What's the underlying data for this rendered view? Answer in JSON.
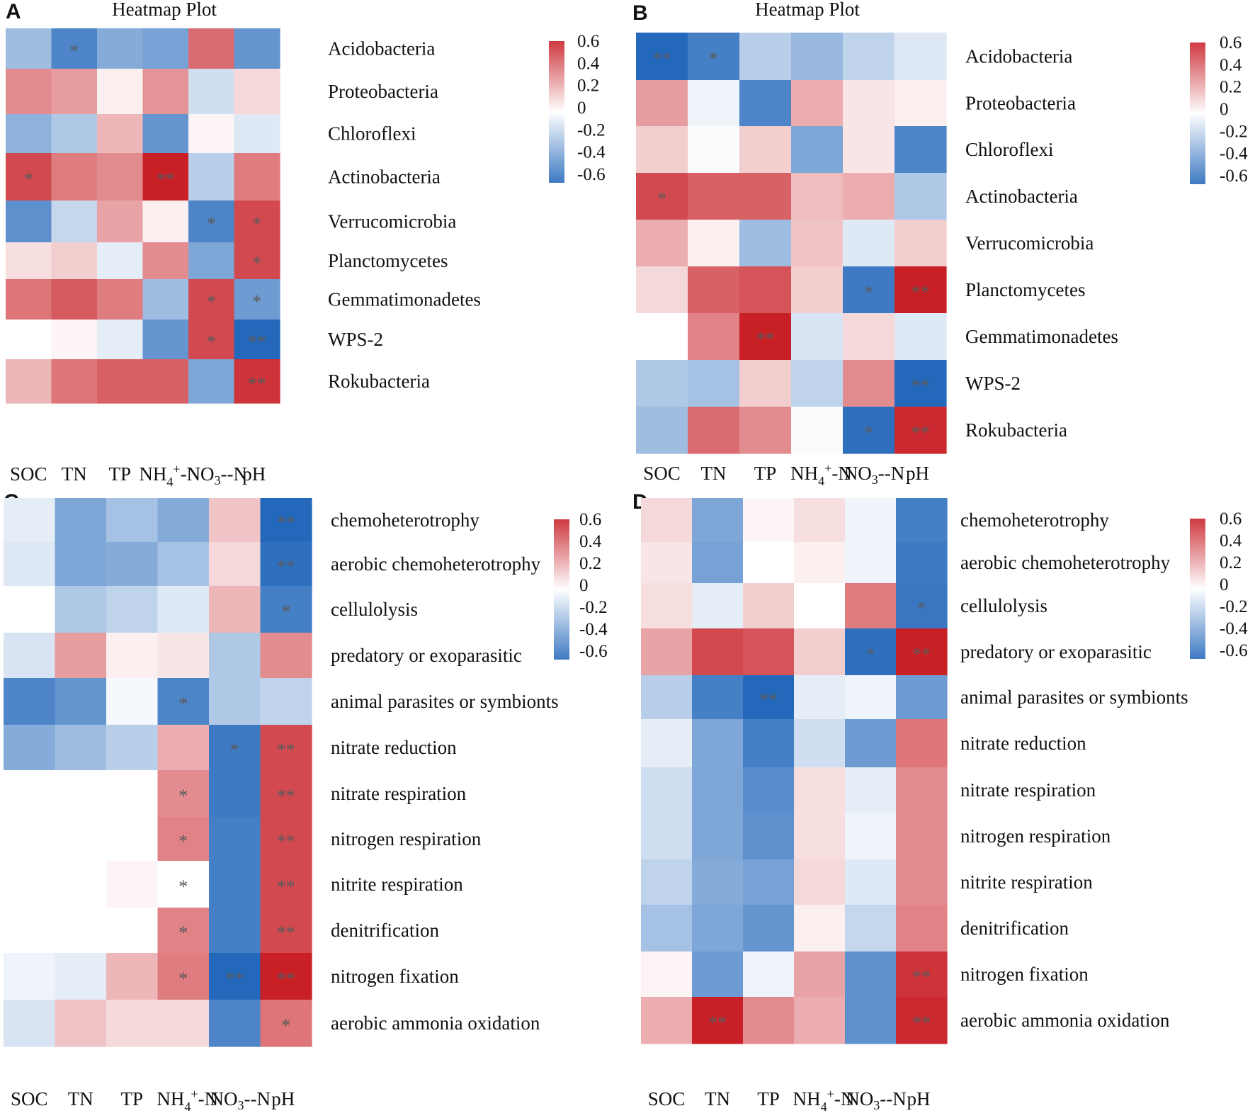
{
  "chart_data": [
    {
      "type": "heatmap",
      "panel": "A",
      "title": "Heatmap Plot",
      "columns": [
        "SOC",
        "TN",
        "TP",
        "NH4+-N",
        "NO3--N",
        "pH"
      ],
      "rows": [
        "Acidobacteria",
        "Proteobacteria",
        "Chloroflexi",
        "Actinobacteria",
        "Verrucomicrobia",
        "Planctomycetes",
        "Gemmatimonadetes",
        "WPS-2",
        "Rokubacteria"
      ],
      "values": [
        [
          -0.3,
          -0.55,
          -0.38,
          -0.42,
          0.45,
          -0.48
        ],
        [
          0.35,
          0.3,
          0.05,
          0.33,
          -0.15,
          0.12
        ],
        [
          -0.35,
          -0.25,
          0.22,
          -0.48,
          0.03,
          -0.1
        ],
        [
          0.55,
          0.4,
          0.35,
          0.68,
          -0.22,
          0.4
        ],
        [
          -0.5,
          -0.18,
          0.28,
          0.05,
          -0.55,
          0.55
        ],
        [
          0.1,
          0.15,
          -0.08,
          0.35,
          -0.4,
          0.55
        ],
        [
          0.42,
          0.5,
          0.4,
          -0.3,
          0.55,
          -0.45
        ],
        [
          0.0,
          0.03,
          -0.08,
          -0.48,
          0.55,
          -0.68
        ],
        [
          0.22,
          0.42,
          0.48,
          0.48,
          -0.4,
          0.62
        ]
      ],
      "sig": [
        [
          "",
          "*",
          "",
          "",
          "",
          ""
        ],
        [
          "",
          "",
          "",
          "",
          "",
          ""
        ],
        [
          "",
          "",
          "",
          "",
          "",
          ""
        ],
        [
          "*",
          "",
          "",
          "**",
          "",
          ""
        ],
        [
          "",
          "",
          "",
          "",
          "*",
          "*"
        ],
        [
          "",
          "",
          "",
          "",
          "",
          "*"
        ],
        [
          "",
          "",
          "",
          "",
          "*",
          "*"
        ],
        [
          "",
          "",
          "",
          "",
          "*",
          "**"
        ],
        [
          "",
          "",
          "",
          "",
          "",
          "**"
        ]
      ],
      "colorbar": {
        "ticks": [
          "0.6",
          "0.4",
          "0.2",
          "0",
          "-0.2",
          "-0.4",
          "-0.6"
        ],
        "range": [
          -0.6,
          0.6
        ]
      }
    },
    {
      "type": "heatmap",
      "panel": "B",
      "title": "Heatmap Plot",
      "columns": [
        "SOC",
        "TN",
        "TP",
        "NH4+-N",
        "NO3--N",
        "pH"
      ],
      "rows": [
        "Acidobacteria",
        "Proteobacteria",
        "Chloroflexi",
        "Actinobacteria",
        "Verrucomicrobia",
        "Planctomycetes",
        "Gemmatimonadetes",
        "WPS-2",
        "Rokubacteria"
      ],
      "values": [
        [
          -0.68,
          -0.58,
          -0.22,
          -0.32,
          -0.2,
          -0.1
        ],
        [
          0.3,
          -0.05,
          -0.55,
          0.25,
          0.08,
          0.05
        ],
        [
          0.15,
          -0.02,
          0.15,
          -0.4,
          0.08,
          -0.55
        ],
        [
          0.55,
          0.48,
          0.48,
          0.2,
          0.25,
          -0.25
        ],
        [
          0.25,
          0.05,
          -0.3,
          0.18,
          -0.1,
          0.15
        ],
        [
          0.12,
          0.48,
          0.52,
          0.15,
          -0.6,
          0.68
        ],
        [
          0.0,
          0.38,
          0.68,
          -0.12,
          0.12,
          -0.1
        ],
        [
          -0.25,
          -0.28,
          0.15,
          -0.2,
          0.35,
          -0.68
        ],
        [
          -0.3,
          0.45,
          0.35,
          -0.02,
          -0.65,
          0.65
        ]
      ],
      "sig": [
        [
          "**",
          "*",
          "",
          "",
          "",
          ""
        ],
        [
          "",
          "",
          "",
          "",
          "",
          ""
        ],
        [
          "",
          "",
          "",
          "",
          "",
          ""
        ],
        [
          "*",
          "",
          "",
          "",
          "",
          ""
        ],
        [
          "",
          "",
          "",
          "",
          "",
          ""
        ],
        [
          "",
          "",
          "",
          "",
          "*",
          "**"
        ],
        [
          "",
          "",
          "**",
          "",
          "",
          ""
        ],
        [
          "",
          "",
          "",
          "",
          "",
          "**"
        ],
        [
          "",
          "",
          "",
          "",
          "*",
          "**"
        ]
      ],
      "colorbar": {
        "ticks": [
          "0.6",
          "0.4",
          "0.2",
          "0",
          "-0.2",
          "-0.4",
          "-0.6"
        ],
        "range": [
          -0.6,
          0.6
        ]
      }
    },
    {
      "type": "heatmap",
      "panel": "C",
      "title": "",
      "columns": [
        "SOC",
        "TN",
        "TP",
        "NH4+-N",
        "NO3--N",
        "pH"
      ],
      "rows": [
        "chemoheterotrophy",
        "aerobic chemoheterotrophy",
        "cellulolysis",
        "predatory or exoparasitic",
        "animal parasites or symbionts",
        "nitrate reduction",
        "nitrate respiration",
        "nitrogen respiration",
        "nitrite respiration",
        "denitrification",
        "nitrogen fixation",
        "aerobic ammonia oxidation"
      ],
      "values": [
        [
          -0.08,
          -0.4,
          -0.28,
          -0.38,
          0.18,
          -0.68
        ],
        [
          -0.1,
          -0.4,
          -0.38,
          -0.28,
          0.12,
          -0.65
        ],
        [
          0.0,
          -0.25,
          -0.2,
          -0.1,
          0.22,
          -0.58
        ],
        [
          -0.12,
          0.3,
          0.05,
          0.08,
          -0.25,
          0.35
        ],
        [
          -0.55,
          -0.48,
          -0.03,
          -0.55,
          -0.25,
          -0.2
        ],
        [
          -0.38,
          -0.3,
          -0.22,
          0.25,
          -0.6,
          0.55
        ],
        [
          0.0,
          0.0,
          0.0,
          0.35,
          -0.6,
          0.55
        ],
        [
          0.0,
          0.0,
          0.0,
          0.38,
          -0.58,
          0.55
        ],
        [
          0.0,
          0.0,
          0.03,
          0.0,
          -0.58,
          0.55
        ],
        [
          0.0,
          0.0,
          0.0,
          0.38,
          -0.58,
          0.55
        ],
        [
          -0.05,
          -0.08,
          0.22,
          0.4,
          -0.68,
          0.68
        ],
        [
          -0.12,
          0.18,
          0.12,
          0.12,
          -0.55,
          0.42
        ]
      ],
      "sig": [
        [
          "",
          "",
          "",
          "",
          "",
          "**"
        ],
        [
          "",
          "",
          "",
          "",
          "",
          "**"
        ],
        [
          "",
          "",
          "",
          "",
          "",
          "*"
        ],
        [
          "",
          "",
          "",
          "",
          "",
          ""
        ],
        [
          "",
          "",
          "",
          "*",
          "",
          ""
        ],
        [
          "",
          "",
          "",
          "",
          "*",
          "**"
        ],
        [
          "",
          "",
          "",
          "*",
          "",
          "**"
        ],
        [
          "",
          "",
          "",
          "*",
          "",
          "**"
        ],
        [
          "",
          "",
          "",
          "*",
          "",
          "**"
        ],
        [
          "",
          "",
          "",
          "*",
          "",
          "**"
        ],
        [
          "",
          "",
          "",
          "*",
          "**",
          "**"
        ],
        [
          "",
          "",
          "",
          "",
          "",
          "*"
        ]
      ],
      "colorbar": {
        "ticks": [
          "0.6",
          "0.4",
          "0.2",
          "0",
          "-0.2",
          "-0.4",
          "-0.6"
        ],
        "range": [
          -0.6,
          0.6
        ]
      }
    },
    {
      "type": "heatmap",
      "panel": "D",
      "title": "",
      "columns": [
        "SOC",
        "TN",
        "TP",
        "NH4+-N",
        "NO3--N",
        "pH"
      ],
      "rows": [
        "chemoheterotrophy",
        "aerobic chemoheterotrophy",
        "cellulolysis",
        "predatory or exoparasitic",
        "animal parasites or symbionts",
        "nitrate reduction",
        "nitrate respiration",
        "nitrogen respiration",
        "nitrite respiration",
        "denitrification",
        "nitrogen fixation",
        "aerobic ammonia oxidation"
      ],
      "values": [
        [
          0.12,
          -0.4,
          0.03,
          0.1,
          -0.05,
          -0.58
        ],
        [
          0.08,
          -0.42,
          0.0,
          0.05,
          -0.05,
          -0.6
        ],
        [
          0.1,
          -0.08,
          0.15,
          0.0,
          0.4,
          -0.62
        ],
        [
          0.28,
          0.55,
          0.52,
          0.15,
          -0.65,
          0.68
        ],
        [
          -0.22,
          -0.58,
          -0.68,
          -0.08,
          -0.05,
          -0.45
        ],
        [
          -0.08,
          -0.4,
          -0.58,
          -0.15,
          -0.45,
          0.42
        ],
        [
          -0.15,
          -0.4,
          -0.52,
          0.1,
          -0.08,
          0.35
        ],
        [
          -0.15,
          -0.4,
          -0.5,
          0.1,
          -0.05,
          0.35
        ],
        [
          -0.2,
          -0.38,
          -0.42,
          0.12,
          -0.1,
          0.35
        ],
        [
          -0.28,
          -0.4,
          -0.48,
          0.05,
          -0.18,
          0.38
        ],
        [
          0.03,
          -0.45,
          -0.05,
          0.28,
          -0.5,
          0.62
        ],
        [
          0.25,
          0.68,
          0.35,
          0.25,
          -0.5,
          0.65
        ]
      ],
      "sig": [
        [
          "",
          "",
          "",
          "",
          "",
          ""
        ],
        [
          "",
          "",
          "",
          "",
          "",
          ""
        ],
        [
          "",
          "",
          "",
          "",
          "",
          "*"
        ],
        [
          "",
          "",
          "",
          "",
          "*",
          "**"
        ],
        [
          "",
          "",
          "**",
          "",
          "",
          ""
        ],
        [
          "",
          "",
          "",
          "",
          "",
          ""
        ],
        [
          "",
          "",
          "",
          "",
          "",
          ""
        ],
        [
          "",
          "",
          "",
          "",
          "",
          ""
        ],
        [
          "",
          "",
          "",
          "",
          "",
          ""
        ],
        [
          "",
          "",
          "",
          "",
          "",
          ""
        ],
        [
          "",
          "",
          "",
          "",
          "",
          "**"
        ],
        [
          "",
          "**",
          "",
          "",
          "",
          "**"
        ]
      ],
      "colorbar": {
        "ticks": [
          "0.6",
          "0.4",
          "0.2",
          "0",
          "-0.2",
          "-0.4",
          "-0.6"
        ],
        "range": [
          -0.6,
          0.6
        ]
      }
    }
  ]
}
